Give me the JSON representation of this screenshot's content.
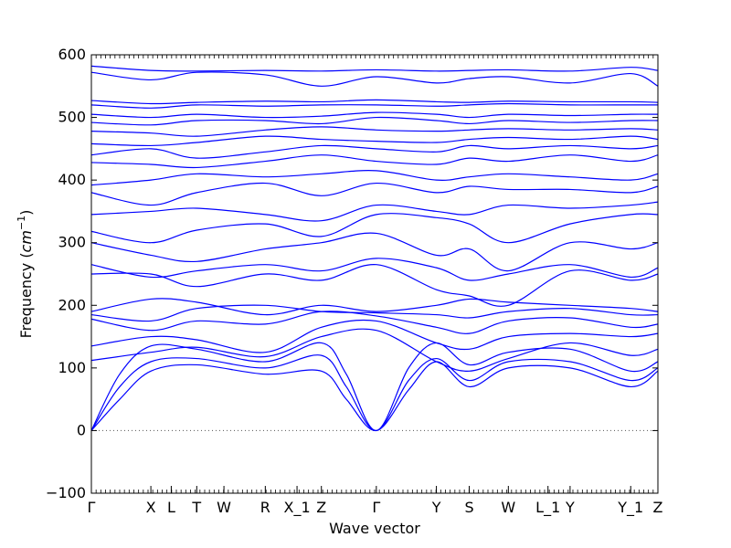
{
  "chart_data": {
    "type": "line",
    "title": "",
    "xlabel": "Wave vector",
    "ylabel": "Frequency (",
    "ylabel_unit": "cm",
    "ylabel_exp": "−1",
    "ylabel_close": ")",
    "ylim": [
      -100,
      600
    ],
    "yticks": [
      -100,
      0,
      100,
      200,
      300,
      400,
      500,
      600
    ],
    "xlim": [
      0,
      100
    ],
    "high_symmetry_points": [
      {
        "label": "Γ",
        "x": 0
      },
      {
        "label": "X",
        "x": 10.5
      },
      {
        "label": "L",
        "x": 14.1
      },
      {
        "label": "T",
        "x": 18.6
      },
      {
        "label": "W",
        "x": 23.4
      },
      {
        "label": "R",
        "x": 30.7
      },
      {
        "label": "X_1",
        "x": 36.3
      },
      {
        "label": "Z",
        "x": 40.6
      },
      {
        "label": "Γ",
        "x": 50.3
      },
      {
        "label": "Y",
        "x": 60.9
      },
      {
        "label": "S",
        "x": 66.7
      },
      {
        "label": "W",
        "x": 73.6
      },
      {
        "label": "L_1",
        "x": 80.6
      },
      {
        "label": "Y",
        "x": 84.5
      },
      {
        "label": "Y_1",
        "x": 95.2
      },
      {
        "label": "Z",
        "x": 100
      }
    ],
    "zero_line": true,
    "line_color": "#0000ff",
    "series": [
      {
        "x": [
          0,
          5,
          10.5,
          18.6,
          30.7,
          40.6,
          45,
          50.3,
          56,
          60.9,
          66.7,
          73.6,
          84.5,
          95.2,
          100
        ],
        "y": [
          0,
          50,
          95,
          105,
          90,
          95,
          50,
          0,
          65,
          110,
          70,
          100,
          100,
          70,
          95
        ]
      },
      {
        "x": [
          0,
          5,
          10.5,
          18.6,
          30.7,
          40.6,
          45,
          50.3,
          56,
          60.9,
          66.7,
          73.6,
          84.5,
          95.2,
          100
        ],
        "y": [
          0,
          70,
          110,
          115,
          100,
          120,
          70,
          0,
          80,
          115,
          80,
          110,
          110,
          80,
          100
        ]
      },
      {
        "x": [
          0,
          5,
          10.5,
          18.6,
          30.7,
          40.6,
          45,
          50.3,
          56,
          60.9,
          66.7,
          73.6,
          84.5,
          95.2,
          100
        ],
        "y": [
          0,
          90,
          135,
          130,
          110,
          140,
          90,
          0,
          100,
          140,
          105,
          125,
          130,
          95,
          110
        ]
      },
      {
        "x": [
          0,
          10.5,
          18.6,
          30.7,
          40.6,
          50.3,
          60.9,
          66.7,
          73.6,
          84.5,
          95.2,
          100
        ],
        "y": [
          112,
          125,
          133,
          118,
          150,
          160,
          110,
          95,
          115,
          140,
          120,
          130
        ]
      },
      {
        "x": [
          0,
          10.5,
          18.6,
          30.7,
          40.6,
          50.3,
          60.9,
          66.7,
          73.6,
          84.5,
          95.2,
          100
        ],
        "y": [
          135,
          150,
          145,
          125,
          165,
          175,
          140,
          130,
          150,
          155,
          150,
          155
        ]
      },
      {
        "x": [
          0,
          10.5,
          18.6,
          30.7,
          40.6,
          50.3,
          60.9,
          66.7,
          73.6,
          84.5,
          95.2,
          100
        ],
        "y": [
          178,
          160,
          175,
          170,
          190,
          183,
          165,
          155,
          175,
          180,
          165,
          170
        ]
      },
      {
        "x": [
          0,
          10.5,
          18.6,
          30.7,
          40.6,
          50.3,
          60.9,
          66.7,
          73.6,
          84.5,
          95.2,
          100
        ],
        "y": [
          185,
          175,
          195,
          200,
          190,
          188,
          185,
          180,
          190,
          195,
          185,
          185
        ]
      },
      {
        "x": [
          0,
          10.5,
          18.6,
          30.7,
          40.6,
          50.3,
          60.9,
          66.7,
          73.6,
          84.5,
          95.2,
          100
        ],
        "y": [
          190,
          210,
          205,
          185,
          200,
          190,
          200,
          210,
          205,
          200,
          195,
          190
        ]
      },
      {
        "x": [
          0,
          10.5,
          18.6,
          30.7,
          40.6,
          50.3,
          60.9,
          66.7,
          73.6,
          84.5,
          95.2,
          100
        ],
        "y": [
          250,
          250,
          230,
          250,
          240,
          265,
          225,
          215,
          200,
          255,
          240,
          250
        ]
      },
      {
        "x": [
          0,
          10.5,
          18.6,
          30.7,
          40.6,
          50.3,
          60.9,
          66.7,
          73.6,
          84.5,
          95.2,
          100
        ],
        "y": [
          265,
          245,
          255,
          265,
          255,
          275,
          260,
          240,
          250,
          265,
          245,
          260
        ]
      },
      {
        "x": [
          0,
          10.5,
          18.6,
          30.7,
          40.6,
          50.3,
          60.9,
          66.7,
          73.6,
          84.5,
          95.2,
          100
        ],
        "y": [
          300,
          280,
          270,
          290,
          300,
          315,
          280,
          290,
          255,
          300,
          290,
          300
        ]
      },
      {
        "x": [
          0,
          10.5,
          18.6,
          30.7,
          40.6,
          50.3,
          60.9,
          66.7,
          73.6,
          84.5,
          95.2,
          100
        ],
        "y": [
          318,
          300,
          320,
          330,
          310,
          345,
          340,
          330,
          300,
          330,
          345,
          345
        ]
      },
      {
        "x": [
          0,
          10.5,
          18.6,
          30.7,
          40.6,
          50.3,
          60.9,
          66.7,
          73.6,
          84.5,
          95.2,
          100
        ],
        "y": [
          345,
          350,
          355,
          345,
          335,
          360,
          350,
          345,
          360,
          355,
          360,
          365
        ]
      },
      {
        "x": [
          0,
          10.5,
          18.6,
          30.7,
          40.6,
          50.3,
          60.9,
          66.7,
          73.6,
          84.5,
          95.2,
          100
        ],
        "y": [
          380,
          360,
          380,
          395,
          375,
          395,
          380,
          390,
          385,
          385,
          380,
          390
        ]
      },
      {
        "x": [
          0,
          10.5,
          18.6,
          30.7,
          40.6,
          50.3,
          60.9,
          66.7,
          73.6,
          84.5,
          95.2,
          100
        ],
        "y": [
          392,
          400,
          410,
          405,
          410,
          415,
          400,
          405,
          410,
          405,
          400,
          410
        ]
      },
      {
        "x": [
          0,
          10.5,
          18.6,
          30.7,
          40.6,
          50.3,
          60.9,
          66.7,
          73.6,
          84.5,
          95.2,
          100
        ],
        "y": [
          428,
          425,
          420,
          430,
          440,
          430,
          425,
          435,
          430,
          440,
          430,
          440
        ]
      },
      {
        "x": [
          0,
          10.5,
          18.6,
          30.7,
          40.6,
          50.3,
          60.9,
          66.7,
          73.6,
          84.5,
          95.2,
          100
        ],
        "y": [
          440,
          450,
          435,
          445,
          455,
          450,
          445,
          455,
          450,
          455,
          450,
          455
        ]
      },
      {
        "x": [
          0,
          10.5,
          18.6,
          30.7,
          40.6,
          50.3,
          60.9,
          66.7,
          73.6,
          84.5,
          95.2,
          100
        ],
        "y": [
          458,
          455,
          460,
          470,
          465,
          462,
          460,
          465,
          468,
          465,
          470,
          465
        ]
      },
      {
        "x": [
          0,
          10.5,
          18.6,
          30.7,
          40.6,
          50.3,
          60.9,
          66.7,
          73.6,
          84.5,
          95.2,
          100
        ],
        "y": [
          478,
          475,
          470,
          480,
          485,
          480,
          478,
          480,
          482,
          480,
          482,
          480
        ]
      },
      {
        "x": [
          0,
          10.5,
          18.6,
          30.7,
          40.6,
          50.3,
          60.9,
          66.7,
          73.6,
          84.5,
          95.2,
          100
        ],
        "y": [
          492,
          488,
          495,
          495,
          490,
          500,
          495,
          490,
          495,
          492,
          495,
          495
        ]
      },
      {
        "x": [
          0,
          10.5,
          18.6,
          30.7,
          40.6,
          50.3,
          60.9,
          66.7,
          73.6,
          84.5,
          95.2,
          100
        ],
        "y": [
          505,
          500,
          505,
          500,
          502,
          508,
          505,
          500,
          505,
          503,
          505,
          505
        ]
      },
      {
        "x": [
          0,
          10.5,
          18.6,
          30.7,
          40.6,
          50.3,
          60.9,
          66.7,
          73.6,
          84.5,
          95.2,
          100
        ],
        "y": [
          520,
          515,
          520,
          518,
          520,
          520,
          518,
          520,
          522,
          520,
          520,
          520
        ]
      },
      {
        "x": [
          0,
          10.5,
          18.6,
          30.7,
          40.6,
          50.3,
          60.9,
          66.7,
          73.6,
          84.5,
          95.2,
          100
        ],
        "y": [
          527,
          522,
          524,
          526,
          525,
          528,
          525,
          524,
          526,
          525,
          525,
          524
        ]
      },
      {
        "x": [
          0,
          10.5,
          18.6,
          30.7,
          40.6,
          50.3,
          60.9,
          66.7,
          73.6,
          84.5,
          95.2,
          100
        ],
        "y": [
          572,
          560,
          572,
          568,
          550,
          565,
          555,
          562,
          565,
          555,
          570,
          550
        ]
      },
      {
        "x": [
          0,
          10.5,
          18.6,
          30.7,
          40.6,
          50.3,
          60.9,
          66.7,
          73.6,
          84.5,
          95.2,
          100
        ],
        "y": [
          582,
          575,
          574,
          575,
          574,
          576,
          574,
          575,
          576,
          574,
          580,
          575
        ]
      }
    ]
  }
}
